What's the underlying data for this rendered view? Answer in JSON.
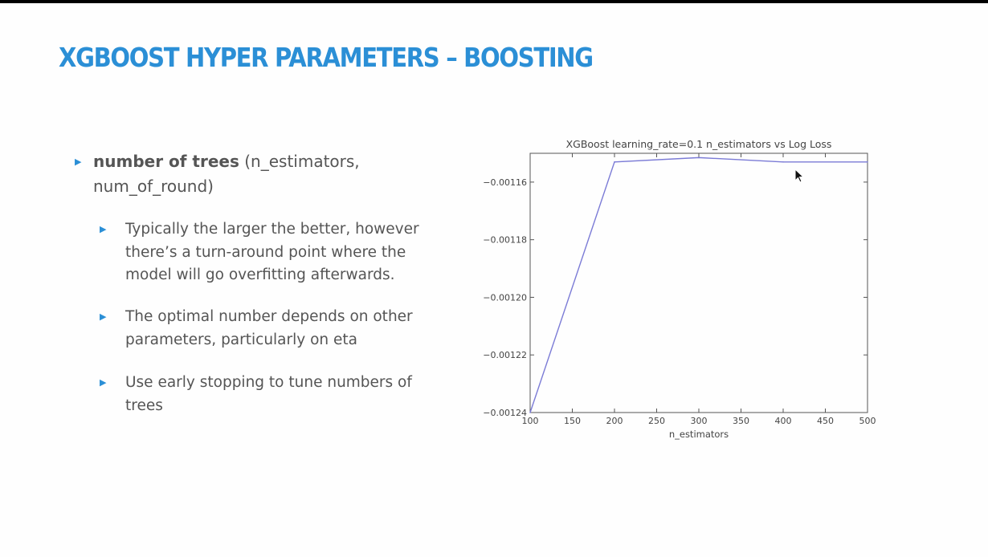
{
  "slide": {
    "title": "XGBOOST HYPER PARAMETERS – BOOSTING",
    "main_bullet": {
      "bold": "number of trees",
      "rest": " (n_estimators, num_of_round)"
    },
    "sub_bullets": [
      {
        "text": "Typically the larger the better, however there’s a turn-around point where the model will go overfitting afterwards."
      },
      {
        "text": "The optimal number depends on other parameters, particularly on eta"
      },
      {
        "text": "Use early stopping to tune numbers of trees"
      }
    ],
    "bullet_color": "#2b8fd6",
    "title_color": "#2b8fd6"
  },
  "chart_data": {
    "type": "line",
    "title": "XGBoost learning_rate=0.1 n_estimators vs Log Loss",
    "xlabel": "n_estimators",
    "ylabel": "",
    "x": [
      100,
      200,
      300,
      400,
      500
    ],
    "series": [
      {
        "values": [
          -0.00124,
          -0.001153,
          -0.0011515,
          -0.001153,
          -0.001153
        ],
        "color": "#7b7bd6"
      }
    ],
    "xlim": [
      100,
      500
    ],
    "ylim": [
      -0.00124,
      -0.00115
    ],
    "xticks": [
      100,
      150,
      200,
      250,
      300,
      350,
      400,
      450,
      500
    ],
    "yticks": [
      -0.00124,
      -0.00122,
      -0.0012,
      -0.00118,
      -0.00116
    ],
    "ytick_labels": [
      "−0.00124",
      "−0.00122",
      "−0.00120",
      "−0.00118",
      "−0.00116"
    ],
    "grid": false
  }
}
